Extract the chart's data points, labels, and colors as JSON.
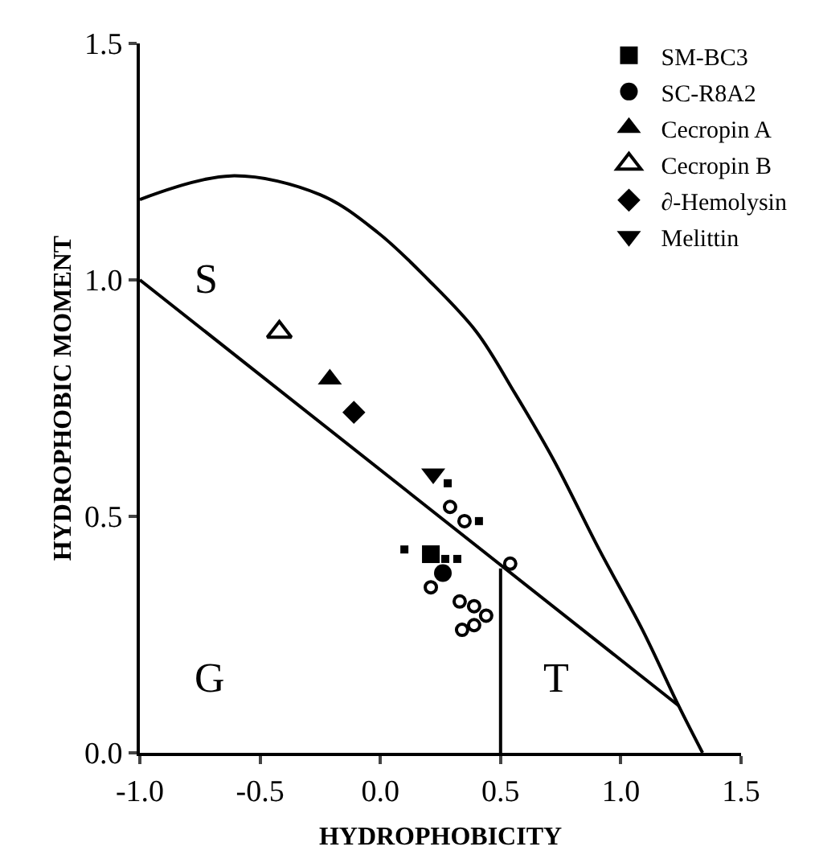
{
  "chart_data": {
    "type": "scatter",
    "xlabel": "HYDROPHOBICITY",
    "ylabel": "HYDROPHOBIC MOMENT",
    "xlim": [
      -1,
      1.5
    ],
    "ylim": [
      0,
      1.5
    ],
    "xticks": [
      {
        "value": -1,
        "label": "-1.0"
      },
      {
        "value": -0.5,
        "label": "-0.5"
      },
      {
        "value": 0,
        "label": "0.0"
      },
      {
        "value": 0.5,
        "label": "0.5"
      },
      {
        "value": 1,
        "label": "1.0"
      },
      {
        "value": 1.5,
        "label": "1.5"
      }
    ],
    "yticks": [
      {
        "value": 0,
        "label": "0.0"
      },
      {
        "value": 0.5,
        "label": "0.5"
      },
      {
        "value": 1,
        "label": "1.0"
      },
      {
        "value": 1.5,
        "label": "1.5"
      }
    ],
    "grid": false,
    "legend": "top right",
    "annotations": [
      "S",
      "G",
      "T"
    ],
    "series": [
      {
        "type": "line",
        "color": "#000000",
        "marker": "none",
        "x": [
          -1,
          -0.62,
          -0.25,
          -0.01,
          0.2,
          0.4,
          0.56,
          0.72,
          0.91,
          1.09,
          1.24,
          1.34
        ],
        "values": [
          1.17,
          1.22,
          1.18,
          1.1,
          1.0,
          0.89,
          0.76,
          0.62,
          0.43,
          0.26,
          0.1,
          0
        ]
      },
      {
        "type": "line",
        "color": "#000000",
        "marker": "none",
        "x": [
          -1,
          1.24
        ],
        "values": [
          1.0,
          0.1
        ]
      },
      {
        "type": "line",
        "color": "#000000",
        "marker": "none",
        "x": [
          0.5,
          0.5
        ],
        "values": [
          0,
          0.39
        ]
      },
      {
        "color": "#000000",
        "marker": "square",
        "x": [
          0.28,
          0.41,
          0.1,
          0.27,
          0.32
        ],
        "values": [
          0.57,
          0.49,
          0.43,
          0.41,
          0.41
        ]
      },
      {
        "color": "#000000",
        "marker": "circle-open",
        "x": [
          0.29,
          0.35,
          0.54,
          0.21,
          0.33,
          0.39,
          0.44,
          0.39,
          0.34
        ],
        "values": [
          0.52,
          0.49,
          0.4,
          0.35,
          0.32,
          0.31,
          0.29,
          0.27,
          0.26
        ]
      },
      {
        "name": "SM-BC3",
        "color": "#000000",
        "marker": "square",
        "x": [
          0.21
        ],
        "values": [
          0.42
        ]
      },
      {
        "name": "SC-R8A2",
        "color": "#000000",
        "marker": "circle",
        "x": [
          0.26
        ],
        "values": [
          0.38
        ]
      },
      {
        "name": "Cecropin A",
        "color": "#000000",
        "marker": "triangle",
        "x": [
          -0.21
        ],
        "values": [
          0.79
        ]
      },
      {
        "name": "Cecropin B",
        "color": "#000000",
        "marker": "triangle-open",
        "x": [
          -0.42
        ],
        "values": [
          0.89
        ]
      },
      {
        "name": "∂-Hemolysin",
        "color": "#000000",
        "marker": "diamond",
        "x": [
          -0.11
        ],
        "values": [
          0.72
        ]
      },
      {
        "name": "Melittin",
        "color": "#000000",
        "marker": "triangle-down",
        "x": [
          0.22
        ],
        "values": [
          0.59
        ]
      }
    ]
  }
}
